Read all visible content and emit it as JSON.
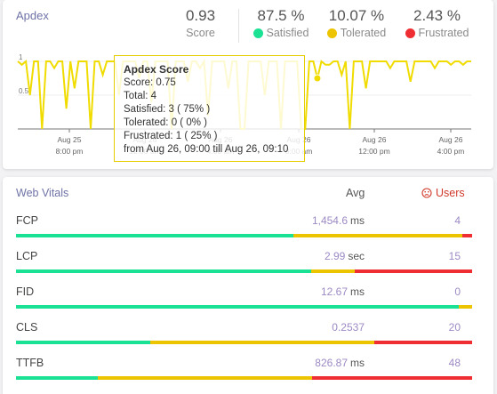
{
  "colors": {
    "satisfied": "#1be195",
    "tolerated": "#ecc400",
    "frustrated": "#ef2e34",
    "line": "#f0dc00"
  },
  "apdex": {
    "title": "Apdex",
    "score_value": "0.93",
    "score_label": "Score",
    "satisfied_value": "87.5 %",
    "satisfied_label": "Satisfied",
    "tolerated_value": "10.07 %",
    "tolerated_label": "Tolerated",
    "frustrated_value": "2.43 %",
    "frustrated_label": "Frustrated"
  },
  "chart_data": {
    "type": "line",
    "title": "",
    "xlabel": "",
    "ylabel": "",
    "ylim": [
      0,
      1
    ],
    "y_ticks": [
      "1",
      "0.5"
    ],
    "x_ticks": [
      {
        "day": "Aug 25",
        "time": "8:00 pm"
      },
      {
        "day": "Aug 26",
        "time": "12:00 am"
      },
      {
        "day": "Aug 26",
        "time": "4:00 am"
      },
      {
        "day": "Aug 26",
        "time": "8:00 am"
      },
      {
        "day": "Aug 26",
        "time": "12:00 pm"
      },
      {
        "day": "Aug 26",
        "time": "4:00 pm"
      }
    ],
    "series": [
      {
        "values": [
          1,
          0.95,
          1,
          0.5,
          1,
          1,
          0,
          1,
          1,
          0.9,
          1,
          1,
          0.3,
          1,
          0.6,
          1,
          1,
          1,
          0,
          1,
          1,
          0.8,
          1,
          1,
          1,
          0.5,
          1,
          1,
          1,
          1,
          0.75,
          1,
          1,
          0.4,
          1,
          1,
          1,
          1,
          0,
          1,
          1,
          1,
          0.7,
          1,
          1,
          0.9,
          1,
          0.2,
          1,
          1,
          1,
          1,
          0.6,
          1,
          1,
          0,
          0,
          1,
          1,
          1,
          1,
          0.5,
          1,
          1,
          1,
          0,
          1,
          1,
          1,
          1,
          0,
          0,
          1,
          1,
          0.75,
          1,
          0.95,
          0.95,
          1,
          1,
          0.8,
          1,
          0,
          1,
          1,
          1,
          0.6,
          1,
          1,
          1,
          1,
          1,
          0.9,
          1,
          1,
          1,
          1,
          0.7,
          1,
          1,
          1,
          1,
          1,
          0.9,
          1,
          1,
          1,
          0.95,
          1,
          1,
          0.95,
          1,
          1
        ]
      }
    ],
    "hover_index": 74
  },
  "tooltip": {
    "title": "Apdex Score",
    "score": "Score: 0.75",
    "total": "Total: 4",
    "satisfied": "Satisfied: 3 ( 75% )",
    "tolerated": "Tolerated: 0 ( 0% )",
    "frustrated": "Frustrated: 1 ( 25% )",
    "range": "from Aug 26, 09:00 till Aug 26, 09:10"
  },
  "vitals": {
    "title": "Web Vitals",
    "avg_header": "Avg",
    "users_icon": "frown-icon",
    "users_header": "Users",
    "items": [
      {
        "name": "FCP",
        "avg": "1,454.6",
        "unit": "ms",
        "users": "4",
        "good": 0.608,
        "fair": 0.37,
        "poor": 0.022
      },
      {
        "name": "LCP",
        "avg": "2.99",
        "unit": "sec",
        "users": "15",
        "good": 0.648,
        "fair": 0.095,
        "poor": 0.257
      },
      {
        "name": "FID",
        "avg": "12.67",
        "unit": "ms",
        "users": "0",
        "good": 0.97,
        "fair": 0.03,
        "poor": 0
      },
      {
        "name": "CLS",
        "avg": "0.2537",
        "unit": "",
        "users": "20",
        "good": 0.295,
        "fair": 0.49,
        "poor": 0.215
      },
      {
        "name": "TTFB",
        "avg": "826.87",
        "unit": "ms",
        "users": "48",
        "good": 0.18,
        "fair": 0.47,
        "poor": 0.35
      }
    ]
  }
}
